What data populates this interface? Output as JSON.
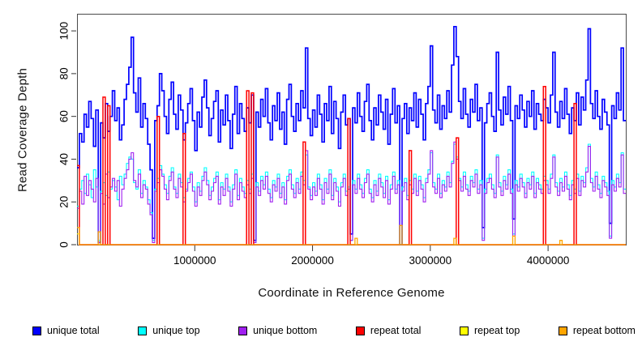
{
  "chart_data": {
    "type": "line",
    "line_style": "step",
    "title": "",
    "xlabel": "Coordinate in Reference Genome",
    "ylabel": "Read Coverage Depth",
    "xlim": [
      0,
      4660000
    ],
    "ylim": [
      0,
      108
    ],
    "x_start": 0,
    "x_step": 20000,
    "grid": false,
    "legend_position": "bottom",
    "frame_color": "#4a4a4a",
    "x_ticks": [
      {
        "value": 1000000,
        "label": "1000000"
      },
      {
        "value": 2000000,
        "label": "2000000"
      },
      {
        "value": 3000000,
        "label": "3000000"
      },
      {
        "value": 4000000,
        "label": "4000000"
      }
    ],
    "y_ticks": [
      {
        "value": 0,
        "label": "0"
      },
      {
        "value": 20,
        "label": "20"
      },
      {
        "value": 40,
        "label": "40"
      },
      {
        "value": 60,
        "label": "60"
      },
      {
        "value": 80,
        "label": "80"
      },
      {
        "value": 100,
        "label": "100"
      }
    ],
    "series": [
      {
        "name": "unique total",
        "color": "#0000FF",
        "values": [
          36,
          52,
          48,
          61,
          55,
          67,
          59,
          46,
          63,
          1,
          57,
          50,
          66,
          53,
          60,
          72,
          58,
          64,
          49,
          56,
          68,
          75,
          83,
          97,
          71,
          62,
          78,
          55,
          66,
          59,
          47,
          35,
          3,
          58,
          65,
          80,
          72,
          60,
          52,
          68,
          76,
          61,
          54,
          70,
          63,
          49,
          57,
          66,
          73,
          58,
          44,
          62,
          55,
          69,
          77,
          64,
          51,
          59,
          67,
          72,
          48,
          63,
          56,
          70,
          58,
          45,
          61,
          74,
          52,
          66,
          59,
          53,
          64,
          57,
          70,
          2,
          62,
          55,
          68,
          60,
          73,
          57,
          49,
          65,
          58,
          71,
          54,
          62,
          47,
          68,
          75,
          60,
          53,
          66,
          58,
          72,
          64,
          92,
          59,
          51,
          63,
          55,
          70,
          61,
          48,
          66,
          58,
          74,
          52,
          67,
          59,
          45,
          62,
          70,
          56,
          59,
          5,
          64,
          57,
          71,
          60,
          53,
          67,
          75,
          58,
          49,
          64,
          56,
          70,
          62,
          54,
          68,
          47,
          61,
          73,
          57,
          65,
          0,
          59,
          66,
          52,
          64,
          58,
          71,
          55,
          68,
          61,
          49,
          66,
          74,
          93,
          63,
          57,
          70,
          54,
          65,
          59,
          72,
          62,
          84,
          102,
          88,
          67,
          59,
          73,
          61,
          55,
          68,
          62,
          75,
          58,
          64,
          8,
          57,
          66,
          71,
          60,
          53,
          90,
          63,
          56,
          69,
          61,
          74,
          58,
          12,
          65,
          59,
          70,
          63,
          55,
          67,
          60,
          72,
          54,
          66,
          61,
          58,
          68,
          64,
          57,
          70,
          90,
          62,
          55,
          67,
          59,
          73,
          61,
          52,
          64,
          58,
          71,
          56,
          69,
          63,
          77,
          101,
          66,
          59,
          72,
          60,
          54,
          68,
          62,
          56,
          10,
          65,
          59,
          71,
          63,
          92,
          58
        ]
      },
      {
        "name": "unique top",
        "color": "#00FFFF",
        "values": [
          18,
          26,
          30,
          24,
          33,
          28,
          22,
          35,
          27,
          2,
          25,
          29,
          23,
          34,
          26,
          30,
          27,
          21,
          32,
          28,
          33,
          38,
          41,
          40,
          29,
          26,
          35,
          24,
          30,
          27,
          21,
          15,
          2,
          26,
          31,
          37,
          33,
          28,
          24,
          32,
          36,
          27,
          24,
          33,
          29,
          22,
          26,
          31,
          34,
          27,
          20,
          29,
          25,
          32,
          36,
          30,
          23,
          27,
          31,
          34,
          21,
          29,
          26,
          33,
          27,
          20,
          28,
          35,
          23,
          31,
          27,
          24,
          30,
          26,
          33,
          1,
          29,
          25,
          32,
          28,
          34,
          26,
          22,
          30,
          27,
          33,
          24,
          29,
          21,
          32,
          35,
          28,
          24,
          31,
          26,
          34,
          30,
          42,
          27,
          23,
          29,
          25,
          33,
          28,
          21,
          31,
          26,
          35,
          23,
          31,
          27,
          20,
          29,
          33,
          25,
          27,
          2,
          30,
          26,
          33,
          28,
          24,
          31,
          35,
          26,
          22,
          30,
          25,
          33,
          29,
          24,
          32,
          21,
          28,
          34,
          26,
          30,
          0,
          27,
          31,
          23,
          30,
          26,
          33,
          25,
          32,
          28,
          22,
          31,
          35,
          43,
          29,
          26,
          33,
          24,
          30,
          27,
          34,
          29,
          39,
          47,
          41,
          31,
          27,
          34,
          28,
          25,
          32,
          29,
          35,
          26,
          30,
          3,
          26,
          31,
          33,
          28,
          24,
          42,
          29,
          25,
          32,
          28,
          35,
          26,
          5,
          30,
          27,
          33,
          29,
          24,
          31,
          28,
          34,
          24,
          31,
          28,
          26,
          32,
          30,
          26,
          33,
          42,
          29,
          25,
          31,
          27,
          34,
          28,
          23,
          30,
          26,
          33,
          25,
          32,
          29,
          36,
          47,
          31,
          27,
          34,
          28,
          24,
          32,
          29,
          25,
          4,
          30,
          27,
          33,
          29,
          43,
          26
        ]
      },
      {
        "name": "unique bottom",
        "color": "#A020F0",
        "values": [
          17,
          25,
          19,
          32,
          23,
          30,
          26,
          20,
          31,
          1,
          24,
          19,
          33,
          22,
          27,
          31,
          25,
          30,
          18,
          26,
          31,
          35,
          40,
          43,
          30,
          27,
          33,
          22,
          28,
          26,
          19,
          14,
          1,
          25,
          29,
          35,
          32,
          26,
          21,
          30,
          34,
          26,
          22,
          31,
          27,
          20,
          25,
          29,
          33,
          25,
          18,
          27,
          23,
          30,
          34,
          28,
          21,
          25,
          29,
          32,
          19,
          27,
          23,
          31,
          25,
          18,
          26,
          33,
          21,
          29,
          25,
          22,
          28,
          24,
          31,
          1,
          27,
          23,
          30,
          26,
          32,
          24,
          20,
          28,
          25,
          31,
          22,
          27,
          19,
          30,
          33,
          26,
          22,
          29,
          24,
          32,
          28,
          44,
          26,
          21,
          27,
          23,
          31,
          26,
          19,
          29,
          24,
          33,
          21,
          29,
          25,
          18,
          27,
          31,
          23,
          26,
          2,
          28,
          24,
          31,
          26,
          22,
          29,
          33,
          24,
          20,
          28,
          23,
          31,
          27,
          22,
          30,
          19,
          26,
          32,
          24,
          28,
          0,
          25,
          29,
          21,
          28,
          24,
          31,
          23,
          30,
          26,
          20,
          29,
          33,
          44,
          27,
          24,
          31,
          22,
          28,
          25,
          32,
          27,
          38,
          48,
          40,
          30,
          25,
          32,
          26,
          23,
          30,
          27,
          33,
          24,
          28,
          2,
          24,
          29,
          31,
          26,
          22,
          41,
          27,
          23,
          30,
          26,
          33,
          24,
          4,
          28,
          25,
          31,
          27,
          22,
          29,
          26,
          32,
          22,
          29,
          26,
          24,
          30,
          28,
          24,
          31,
          41,
          27,
          23,
          29,
          25,
          32,
          26,
          21,
          28,
          24,
          31,
          23,
          30,
          27,
          34,
          46,
          29,
          25,
          32,
          26,
          22,
          30,
          27,
          23,
          3,
          28,
          25,
          31,
          27,
          42,
          24
        ]
      },
      {
        "name": "repeat total",
        "color": "#FF0000",
        "base": 0,
        "spikes": {
          "0": 37,
          "11": 69,
          "13": 65,
          "34": 60,
          "45": 52,
          "72": 72,
          "74": 71,
          "96": 48,
          "115": 59,
          "141": 44,
          "161": 50,
          "198": 74,
          "211": 66
        }
      },
      {
        "name": "repeat top",
        "color": "#FFFF00",
        "base": 0,
        "spikes": {
          "0": 5
        }
      },
      {
        "name": "repeat bottom",
        "color": "#FFA500",
        "base": 0,
        "spikes": {
          "0": 8,
          "9": 6,
          "118": 3,
          "137": 9,
          "160": 3,
          "185": 4,
          "205": 2
        }
      }
    ]
  }
}
